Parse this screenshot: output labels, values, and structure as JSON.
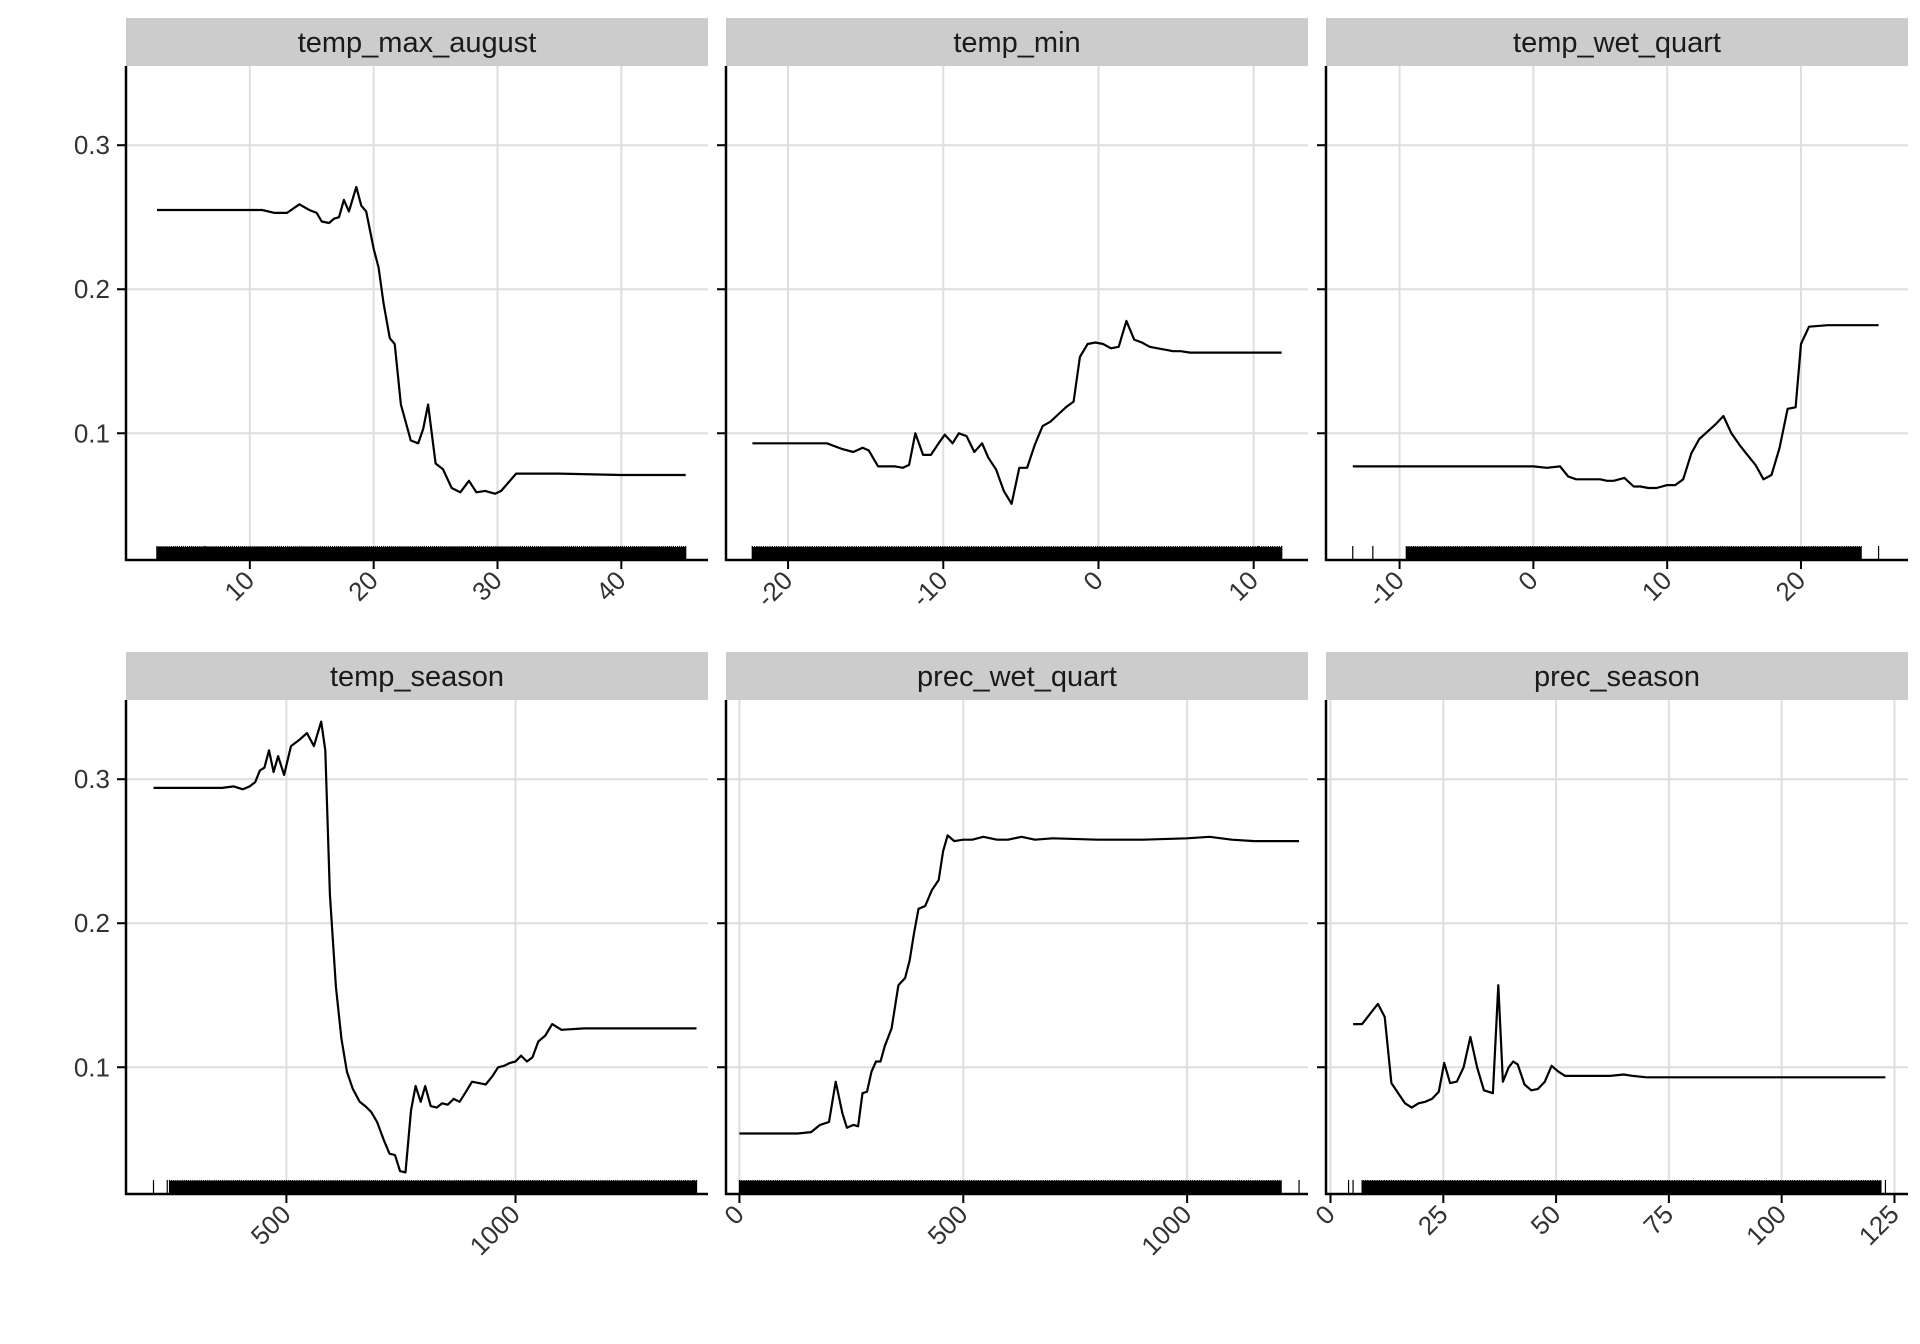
{
  "chart_data": [
    {
      "type": "line",
      "title": "temp_max_august",
      "xlim": [
        0,
        47
      ],
      "ylim": [
        0.012,
        0.355
      ],
      "x_ticks": [
        10,
        20,
        30,
        40
      ],
      "y_ticks": [
        0.1,
        0.2,
        0.3
      ],
      "y_tick_labels": [
        "0.1",
        "0.2",
        "0.3"
      ],
      "x": [
        2.5,
        5,
        8,
        11,
        12,
        13,
        14,
        14.8,
        15.4,
        15.8,
        16.4,
        16.8,
        17.2,
        17.6,
        18,
        18.6,
        19,
        19.4,
        20,
        20.4,
        20.8,
        21.3,
        21.7,
        22.2,
        23,
        23.6,
        24,
        24.4,
        25,
        25.6,
        26.3,
        27,
        27.7,
        28.3,
        29,
        29.8,
        30.3,
        31.5,
        33,
        35,
        40,
        45.2
      ],
      "values": [
        0.255,
        0.255,
        0.255,
        0.255,
        0.253,
        0.253,
        0.259,
        0.255,
        0.253,
        0.247,
        0.246,
        0.249,
        0.25,
        0.262,
        0.254,
        0.271,
        0.258,
        0.254,
        0.228,
        0.215,
        0.19,
        0.166,
        0.162,
        0.12,
        0.095,
        0.093,
        0.103,
        0.12,
        0.079,
        0.075,
        0.062,
        0.059,
        0.067,
        0.059,
        0.06,
        0.058,
        0.06,
        0.072,
        0.072,
        0.072,
        0.071,
        0.071
      ],
      "rug": {
        "min": 2.5,
        "max": 45.2,
        "count": 260,
        "extra": [
          2.5,
          4,
          5.3,
          6.4
        ]
      }
    },
    {
      "type": "line",
      "title": "temp_min",
      "xlim": [
        -24,
        13.5
      ],
      "ylim": [
        0.012,
        0.355
      ],
      "x_ticks": [
        -20,
        -10,
        0,
        10
      ],
      "y_ticks": [
        0.1,
        0.2,
        0.3
      ],
      "y_tick_labels": [],
      "x": [
        -22.3,
        -20,
        -17.5,
        -16.5,
        -15.8,
        -15.2,
        -14.8,
        -14.2,
        -13.6,
        -13.1,
        -12.6,
        -12.2,
        -11.8,
        -11.3,
        -10.8,
        -10.3,
        -9.9,
        -9.4,
        -9,
        -8.5,
        -8,
        -7.5,
        -7.1,
        -6.6,
        -6.1,
        -5.6,
        -5.1,
        -4.6,
        -4.1,
        -3.6,
        -3.1,
        -2.6,
        -2.1,
        -1.6,
        -1.2,
        -0.7,
        -0.2,
        0.3,
        0.8,
        1.3,
        1.8,
        2.3,
        2.8,
        3.3,
        3.8,
        4.3,
        4.8,
        5.3,
        5.9,
        7,
        9,
        11.8
      ],
      "values": [
        0.093,
        0.093,
        0.093,
        0.089,
        0.087,
        0.09,
        0.088,
        0.077,
        0.077,
        0.077,
        0.076,
        0.078,
        0.1,
        0.085,
        0.085,
        0.093,
        0.099,
        0.093,
        0.1,
        0.098,
        0.087,
        0.093,
        0.083,
        0.075,
        0.06,
        0.051,
        0.076,
        0.076,
        0.092,
        0.105,
        0.108,
        0.113,
        0.118,
        0.122,
        0.153,
        0.162,
        0.163,
        0.162,
        0.159,
        0.16,
        0.178,
        0.165,
        0.163,
        0.16,
        0.159,
        0.158,
        0.157,
        0.157,
        0.156,
        0.156,
        0.156,
        0.156
      ],
      "rug": {
        "min": -22.3,
        "max": 11.8,
        "count": 240,
        "extra": [
          -22.3,
          -22,
          10.3,
          11.8
        ]
      }
    },
    {
      "type": "line",
      "title": "temp_wet_quart",
      "xlim": [
        -15.5,
        28
      ],
      "ylim": [
        0.012,
        0.355
      ],
      "x_ticks": [
        -10,
        0,
        10,
        20
      ],
      "y_ticks": [
        0.1,
        0.2,
        0.3
      ],
      "y_tick_labels": [],
      "x": [
        -13.5,
        -10,
        -5,
        0,
        1,
        2,
        2.6,
        3.2,
        4,
        5,
        5.5,
        6,
        6.8,
        7.5,
        8,
        8.6,
        9.2,
        10,
        10.6,
        11.2,
        11.8,
        12.4,
        13,
        13.6,
        14.2,
        14.8,
        15.4,
        16,
        16.6,
        17.2,
        17.8,
        18.4,
        19,
        19.6,
        20,
        20.6,
        22,
        25.8
      ],
      "values": [
        0.077,
        0.077,
        0.077,
        0.077,
        0.076,
        0.077,
        0.07,
        0.068,
        0.068,
        0.068,
        0.067,
        0.067,
        0.069,
        0.063,
        0.063,
        0.062,
        0.062,
        0.064,
        0.064,
        0.068,
        0.086,
        0.096,
        0.101,
        0.106,
        0.112,
        0.1,
        0.092,
        0.085,
        0.078,
        0.068,
        0.071,
        0.09,
        0.117,
        0.118,
        0.162,
        0.174,
        0.175,
        0.175
      ],
      "rug": {
        "min": -9.5,
        "max": 24.5,
        "count": 250,
        "extra": [
          -13.5,
          -12,
          25.8
        ]
      }
    },
    {
      "type": "line",
      "title": "temp_season",
      "xlim": [
        150,
        1420
      ],
      "ylim": [
        0.012,
        0.355
      ],
      "x_ticks": [
        500,
        1000
      ],
      "y_ticks": [
        0.1,
        0.2,
        0.3
      ],
      "y_tick_labels": [
        "0.1",
        "0.2",
        "0.3"
      ],
      "x": [
        210,
        300,
        360,
        385,
        405,
        420,
        432,
        442,
        452,
        462,
        472,
        482,
        495,
        510,
        527,
        545,
        560,
        576,
        585,
        595,
        608,
        620,
        632,
        645,
        660,
        672,
        685,
        698,
        712,
        725,
        737,
        748,
        760,
        772,
        782,
        793,
        803,
        815,
        828,
        840,
        852,
        865,
        878,
        892,
        905,
        920,
        935,
        950,
        962,
        975,
        988,
        1000,
        1012,
        1025,
        1037,
        1050,
        1065,
        1080,
        1100,
        1150,
        1250,
        1395
      ],
      "values": [
        0.294,
        0.294,
        0.294,
        0.295,
        0.293,
        0.295,
        0.298,
        0.306,
        0.308,
        0.32,
        0.305,
        0.316,
        0.303,
        0.323,
        0.327,
        0.332,
        0.323,
        0.34,
        0.32,
        0.22,
        0.156,
        0.12,
        0.097,
        0.085,
        0.076,
        0.073,
        0.069,
        0.062,
        0.05,
        0.04,
        0.039,
        0.028,
        0.027,
        0.07,
        0.087,
        0.076,
        0.087,
        0.073,
        0.072,
        0.075,
        0.074,
        0.078,
        0.076,
        0.083,
        0.09,
        0.089,
        0.088,
        0.094,
        0.1,
        0.101,
        0.103,
        0.104,
        0.108,
        0.104,
        0.107,
        0.118,
        0.122,
        0.13,
        0.126,
        0.127,
        0.127,
        0.127
      ],
      "rug": {
        "min": 245,
        "max": 1395,
        "count": 280,
        "extra": [
          210,
          240,
          1370,
          1390
        ]
      }
    },
    {
      "type": "line",
      "title": "prec_wet_quart",
      "xlim": [
        -30,
        1270
      ],
      "ylim": [
        0.012,
        0.355
      ],
      "x_ticks": [
        0,
        500,
        1000
      ],
      "y_ticks": [
        0.1,
        0.2,
        0.3
      ],
      "y_tick_labels": [],
      "x": [
        0,
        80,
        130,
        160,
        180,
        200,
        215,
        230,
        240,
        255,
        265,
        275,
        285,
        295,
        305,
        315,
        325,
        340,
        355,
        370,
        380,
        390,
        400,
        415,
        430,
        445,
        455,
        465,
        480,
        500,
        520,
        545,
        575,
        600,
        630,
        660,
        700,
        800,
        900,
        1000,
        1050,
        1100,
        1150,
        1250
      ],
      "values": [
        0.054,
        0.054,
        0.054,
        0.055,
        0.06,
        0.062,
        0.09,
        0.068,
        0.058,
        0.06,
        0.059,
        0.082,
        0.083,
        0.097,
        0.104,
        0.104,
        0.115,
        0.127,
        0.157,
        0.162,
        0.174,
        0.193,
        0.21,
        0.212,
        0.223,
        0.23,
        0.25,
        0.261,
        0.257,
        0.258,
        0.258,
        0.26,
        0.258,
        0.258,
        0.26,
        0.258,
        0.259,
        0.258,
        0.258,
        0.259,
        0.26,
        0.258,
        0.257,
        0.257
      ],
      "rug": {
        "min": 0,
        "max": 1210,
        "count": 300,
        "extra": [
          1250
        ]
      }
    },
    {
      "type": "line",
      "title": "prec_season",
      "xlim": [
        -1,
        128
      ],
      "ylim": [
        0.012,
        0.355
      ],
      "x_ticks": [
        0,
        25,
        50,
        75,
        100,
        125
      ],
      "y_ticks": [
        0.1,
        0.2,
        0.3
      ],
      "y_tick_labels": [],
      "x": [
        5,
        7,
        9,
        10.5,
        12,
        13.5,
        15,
        16.5,
        18,
        19.5,
        21,
        22.5,
        24,
        25.2,
        26.5,
        28,
        29.5,
        31,
        32.5,
        34,
        36,
        37.2,
        38.2,
        39.5,
        40.5,
        41.5,
        43,
        44.5,
        46,
        47.5,
        49,
        50.5,
        52,
        55,
        58,
        62,
        65,
        67,
        70,
        80,
        100,
        123
      ],
      "values": [
        0.13,
        0.13,
        0.138,
        0.144,
        0.135,
        0.089,
        0.082,
        0.075,
        0.072,
        0.075,
        0.076,
        0.078,
        0.083,
        0.103,
        0.089,
        0.09,
        0.1,
        0.121,
        0.1,
        0.084,
        0.082,
        0.157,
        0.09,
        0.1,
        0.104,
        0.102,
        0.088,
        0.084,
        0.085,
        0.09,
        0.101,
        0.097,
        0.094,
        0.094,
        0.094,
        0.094,
        0.095,
        0.094,
        0.093,
        0.093,
        0.093,
        0.093
      ],
      "rug": {
        "min": 7,
        "max": 122,
        "count": 300,
        "extra": [
          4,
          5,
          7,
          123
        ]
      }
    }
  ]
}
